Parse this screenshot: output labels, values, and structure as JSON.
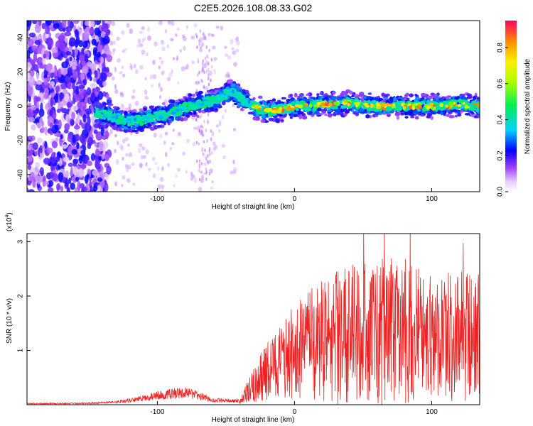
{
  "title": "C2E5.2026.108.08.33.G02",
  "chart_data": [
    {
      "type": "heatmap",
      "xlabel": "Height of straight line (km)",
      "ylabel": "Frequency (Hz)",
      "xlim": [
        -195,
        135
      ],
      "ylim": [
        -50,
        50
      ],
      "xticks": [
        -100,
        0,
        100
      ],
      "yticks": [
        -40,
        -20,
        0,
        20,
        40
      ],
      "ridge": {
        "x": [
          -145,
          -130,
          -120,
          -110,
          -100,
          -90,
          -80,
          -70,
          -60,
          -50,
          -45,
          -40,
          -30,
          -20,
          -10,
          0,
          10,
          20,
          30,
          40,
          50,
          60,
          70,
          80,
          90,
          100,
          110,
          120,
          130
        ],
        "freq": [
          -4,
          -7,
          -9,
          -8,
          -6,
          -4,
          -1,
          1,
          3,
          7,
          8,
          5,
          0,
          -3,
          -2,
          0,
          0,
          1,
          1,
          2,
          1,
          0,
          0,
          0,
          0,
          0,
          0,
          1,
          0
        ]
      },
      "colorbar": {
        "label": "Normalized spectral amplitude",
        "range": [
          0,
          0.95
        ],
        "ticks": [
          "0.0",
          "0.2",
          "0.4",
          "0.6",
          "0.8"
        ]
      }
    },
    {
      "type": "line",
      "xlabel": "Height of straight line (km)",
      "ylabel": "SNR (10 * v/v)",
      "multiplier": "(x10",
      "multiplier_exp": "4",
      "multiplier_close": ")",
      "xlim": [
        -195,
        135
      ],
      "ylim": [
        0,
        3.15
      ],
      "xticks": [
        -100,
        0,
        100
      ],
      "yticks": [
        1,
        2,
        3
      ],
      "series_color": "#ee2222",
      "envelope": {
        "x": [
          -195,
          -150,
          -130,
          -110,
          -95,
          -80,
          -70,
          -60,
          -40,
          -33,
          -28,
          -20,
          -10,
          0,
          20,
          40,
          60,
          80,
          100,
          120,
          135
        ],
        "values": [
          0.03,
          0.04,
          0.07,
          0.18,
          0.28,
          0.33,
          0.25,
          0.12,
          0.1,
          0.5,
          0.8,
          1.2,
          1.5,
          1.9,
          2.3,
          2.6,
          2.7,
          2.7,
          2.6,
          2.5,
          2.4
        ]
      }
    }
  ]
}
